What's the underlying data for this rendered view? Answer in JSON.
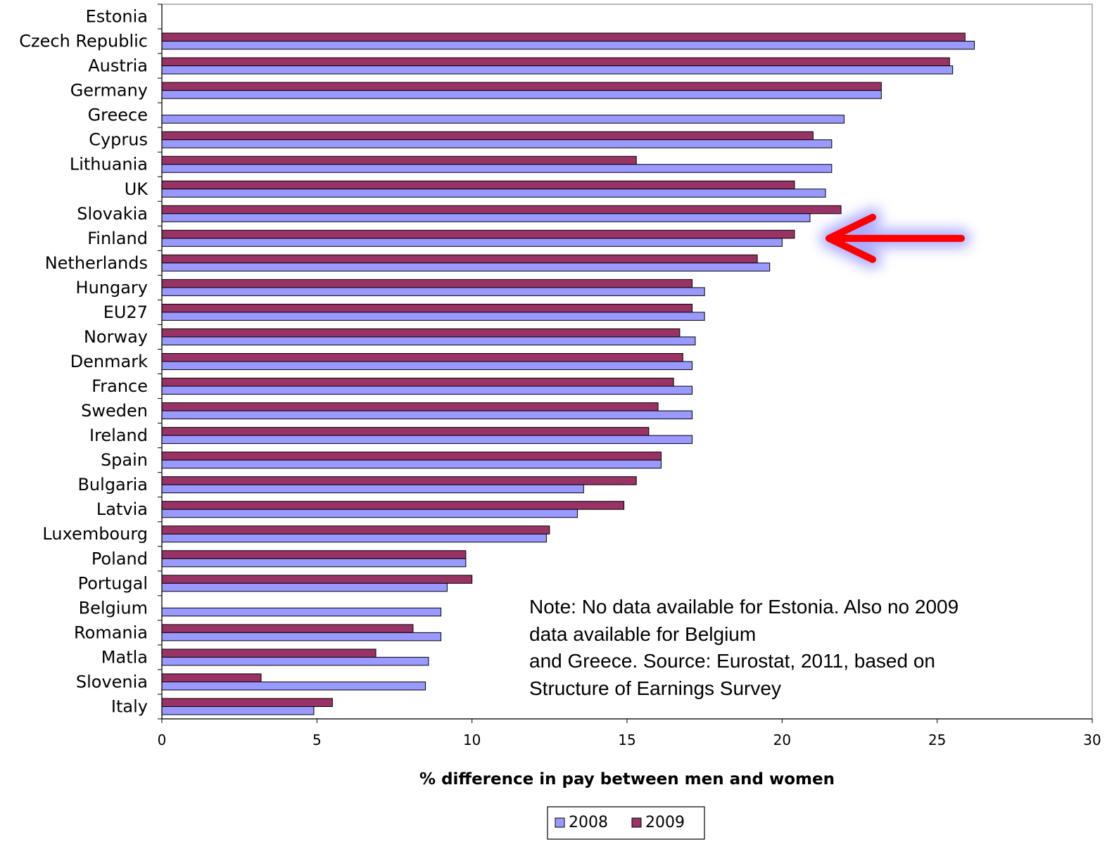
{
  "chart_data": {
    "type": "bar",
    "orientation": "horizontal",
    "categories": [
      "Estonia",
      "Czech Republic",
      "Austria",
      "Germany",
      "Greece",
      "Cyprus",
      "Lithuania",
      "UK",
      "Slovakia",
      "Finland",
      "Netherlands",
      "Hungary",
      "EU27",
      "Norway",
      "Denmark",
      "France",
      "Sweden",
      "Ireland",
      "Spain",
      "Bulgaria",
      "Latvia",
      "Luxembourg",
      "Poland",
      "Portugal",
      "Belgium",
      "Romania",
      "Matla",
      "Slovenia",
      "Italy"
    ],
    "series": [
      {
        "name": "2008",
        "color": "#9999ff",
        "values": [
          null,
          26.2,
          25.5,
          23.2,
          22.0,
          21.6,
          21.6,
          21.4,
          20.9,
          20.0,
          19.6,
          17.5,
          17.5,
          17.2,
          17.1,
          17.1,
          17.1,
          17.1,
          16.1,
          13.6,
          13.4,
          12.4,
          9.8,
          9.2,
          9.0,
          9.0,
          8.6,
          8.5,
          4.9
        ]
      },
      {
        "name": "2009",
        "color": "#993366",
        "values": [
          null,
          25.9,
          25.4,
          23.2,
          null,
          21.0,
          15.3,
          20.4,
          21.9,
          20.4,
          19.2,
          17.1,
          17.1,
          16.7,
          16.8,
          16.5,
          16.0,
          15.7,
          16.1,
          15.3,
          14.9,
          12.5,
          9.8,
          10.0,
          null,
          8.1,
          6.9,
          3.2,
          5.5
        ]
      }
    ],
    "xlim": [
      0,
      30
    ],
    "xticks": [
      "0",
      "5",
      "10",
      "15",
      "20",
      "25",
      "30"
    ],
    "xlabel": "% difference in pay between men and women",
    "title": "",
    "grid": false,
    "legend_position": "bottom-center",
    "annotation_arrow_color": "#ff0000",
    "annotation_arrow_target": "Finland"
  },
  "note": {
    "lines": [
      "Note: No data available for Estonia. Also no 2009",
      "data available for Belgium",
      "and Greece. Source: Eurostat, 2011, based on",
      "Structure of Earnings Survey"
    ]
  }
}
